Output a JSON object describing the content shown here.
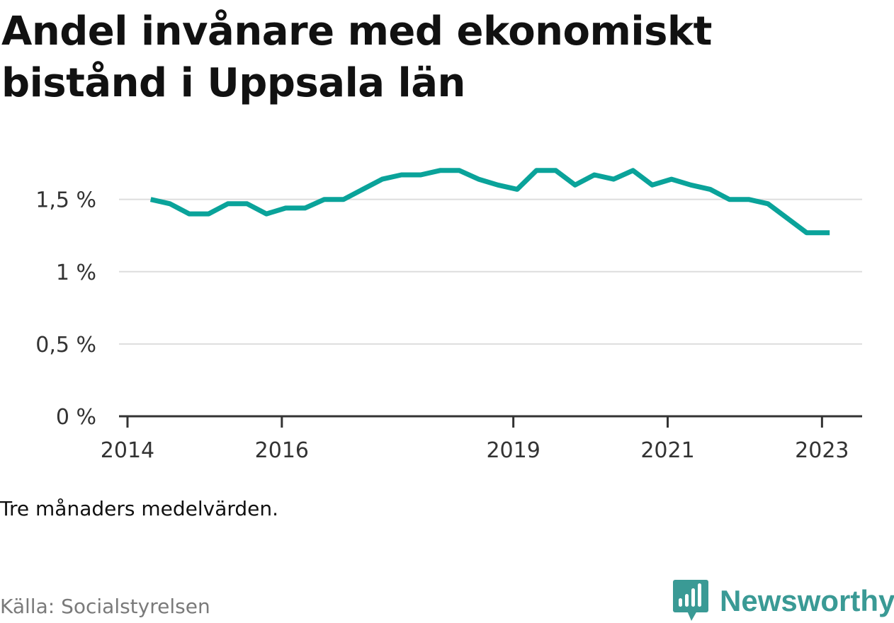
{
  "title": "Andel invånare med ekonomiskt bistånd i Uppsala län",
  "note": "Tre månaders medelvärden.",
  "source": "Källa: Socialstyrelsen",
  "brand": {
    "name": "Newsworthy",
    "logo_icon": "newsworthy-bar-chart-speech-bubble-icon",
    "color": "#3a9a95"
  },
  "colors": {
    "line": "#0aa39a",
    "grid": "#dddddd",
    "axis": "#333333"
  },
  "chart_data": {
    "type": "line",
    "title": "Andel invånare med ekonomiskt bistånd i Uppsala län",
    "xlabel": "",
    "ylabel": "",
    "ylim": [
      0,
      1.9
    ],
    "y_ticks": [
      {
        "value": 0,
        "label": "0 %"
      },
      {
        "value": 0.5,
        "label": "0,5 %"
      },
      {
        "value": 1,
        "label": "1 %"
      },
      {
        "value": 1.5,
        "label": "1,5 %"
      }
    ],
    "x_ticks": [
      {
        "value": 2014,
        "label": "2014"
      },
      {
        "value": 2016,
        "label": "2016"
      },
      {
        "value": 2019,
        "label": "2019"
      },
      {
        "value": 2021,
        "label": "2021"
      },
      {
        "value": 2023,
        "label": "2023"
      }
    ],
    "xlim": [
      2013.89,
      2023.52
    ],
    "grid": "horizontal",
    "series": [
      {
        "x": [
          2014.3,
          2014.55,
          2014.8,
          2015.05,
          2015.3,
          2015.55,
          2015.8,
          2016.05,
          2016.3,
          2016.55,
          2016.8,
          2017.05,
          2017.3,
          2017.55,
          2017.8,
          2018.05,
          2018.3,
          2018.55,
          2018.8,
          2019.05,
          2019.3,
          2019.55,
          2019.8,
          2020.05,
          2020.3,
          2020.55,
          2020.8,
          2021.05,
          2021.3,
          2021.55,
          2021.8,
          2022.05,
          2022.3,
          2022.55,
          2022.8,
          2023.1
        ],
        "y": [
          1.5,
          1.47,
          1.4,
          1.4,
          1.47,
          1.47,
          1.4,
          1.44,
          1.44,
          1.5,
          1.5,
          1.57,
          1.64,
          1.67,
          1.67,
          1.7,
          1.7,
          1.64,
          1.6,
          1.57,
          1.7,
          1.7,
          1.6,
          1.67,
          1.64,
          1.7,
          1.6,
          1.64,
          1.6,
          1.57,
          1.5,
          1.5,
          1.47,
          1.37,
          1.27,
          1.27
        ]
      }
    ]
  }
}
